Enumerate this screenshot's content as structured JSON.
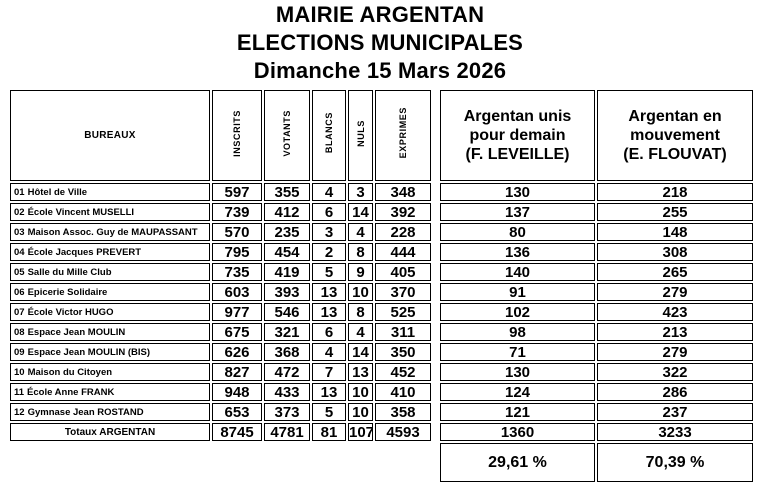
{
  "title_lines": [
    "MAIRIE ARGENTAN",
    "ELECTIONS MUNICIPALES",
    "Dimanche 15 Mars 2026"
  ],
  "colors": {
    "text": "#000000",
    "border": "#000000",
    "background": "#ffffff"
  },
  "bureaux_table": {
    "header_bureaux": "BUREAUX",
    "stat_columns": [
      "INSCRITS",
      "VOTANTS",
      "BLANCS",
      "NULS",
      "EXPRIMES"
    ],
    "rows": [
      {
        "code": "01",
        "name": "Hôtel de Ville",
        "inscrits": "597",
        "votants": "355",
        "blancs": "4",
        "nuls": "3",
        "exprimes": "348",
        "leveille": "130",
        "flouvat": "218"
      },
      {
        "code": "02",
        "name": "École Vincent MUSELLI",
        "inscrits": "739",
        "votants": "412",
        "blancs": "6",
        "nuls": "14",
        "exprimes": "392",
        "leveille": "137",
        "flouvat": "255"
      },
      {
        "code": "03",
        "name": "Maison Assoc. Guy de MAUPASSANT",
        "inscrits": "570",
        "votants": "235",
        "blancs": "3",
        "nuls": "4",
        "exprimes": "228",
        "leveille": "80",
        "flouvat": "148"
      },
      {
        "code": "04",
        "name": "École Jacques PREVERT",
        "inscrits": "795",
        "votants": "454",
        "blancs": "2",
        "nuls": "8",
        "exprimes": "444",
        "leveille": "136",
        "flouvat": "308"
      },
      {
        "code": "05",
        "name": "Salle du Mille Club",
        "inscrits": "735",
        "votants": "419",
        "blancs": "5",
        "nuls": "9",
        "exprimes": "405",
        "leveille": "140",
        "flouvat": "265"
      },
      {
        "code": "06",
        "name": "Epicerie Solidaire",
        "inscrits": "603",
        "votants": "393",
        "blancs": "13",
        "nuls": "10",
        "exprimes": "370",
        "leveille": "91",
        "flouvat": "279"
      },
      {
        "code": "07",
        "name": "École Victor HUGO",
        "inscrits": "977",
        "votants": "546",
        "blancs": "13",
        "nuls": "8",
        "exprimes": "525",
        "leveille": "102",
        "flouvat": "423"
      },
      {
        "code": "08",
        "name": "Espace Jean MOULIN",
        "inscrits": "675",
        "votants": "321",
        "blancs": "6",
        "nuls": "4",
        "exprimes": "311",
        "leveille": "98",
        "flouvat": "213"
      },
      {
        "code": "09",
        "name": "Espace Jean MOULIN (BIS)",
        "inscrits": "626",
        "votants": "368",
        "blancs": "4",
        "nuls": "14",
        "exprimes": "350",
        "leveille": "71",
        "flouvat": "279"
      },
      {
        "code": "10",
        "name": "Maison du Citoyen",
        "inscrits": "827",
        "votants": "472",
        "blancs": "7",
        "nuls": "13",
        "exprimes": "452",
        "leveille": "130",
        "flouvat": "322"
      },
      {
        "code": "11",
        "name": "École Anne FRANK",
        "inscrits": "948",
        "votants": "433",
        "blancs": "13",
        "nuls": "10",
        "exprimes": "410",
        "leveille": "124",
        "flouvat": "286"
      },
      {
        "code": "12",
        "name": "Gymnase Jean ROSTAND",
        "inscrits": "653",
        "votants": "373",
        "blancs": "5",
        "nuls": "10",
        "exprimes": "358",
        "leveille": "121",
        "flouvat": "237"
      }
    ],
    "totals_row": {
      "label": "Totaux ARGENTAN",
      "inscrits": "8745",
      "votants": "4781",
      "blancs": "81",
      "nuls": "107",
      "exprimes": "4593"
    }
  },
  "candidates_table": {
    "candidates": [
      {
        "list_name_lines": [
          "Argentan unis",
          "pour demain",
          "(F. LEVEILLE)"
        ]
      },
      {
        "list_name_lines": [
          "Argentan en",
          "mouvement",
          "(E. FLOUVAT)"
        ]
      }
    ],
    "totals": {
      "leveille": "1360",
      "flouvat": "3233"
    },
    "percentages": {
      "leveille": "29,61 %",
      "flouvat": "70,39 %"
    }
  }
}
